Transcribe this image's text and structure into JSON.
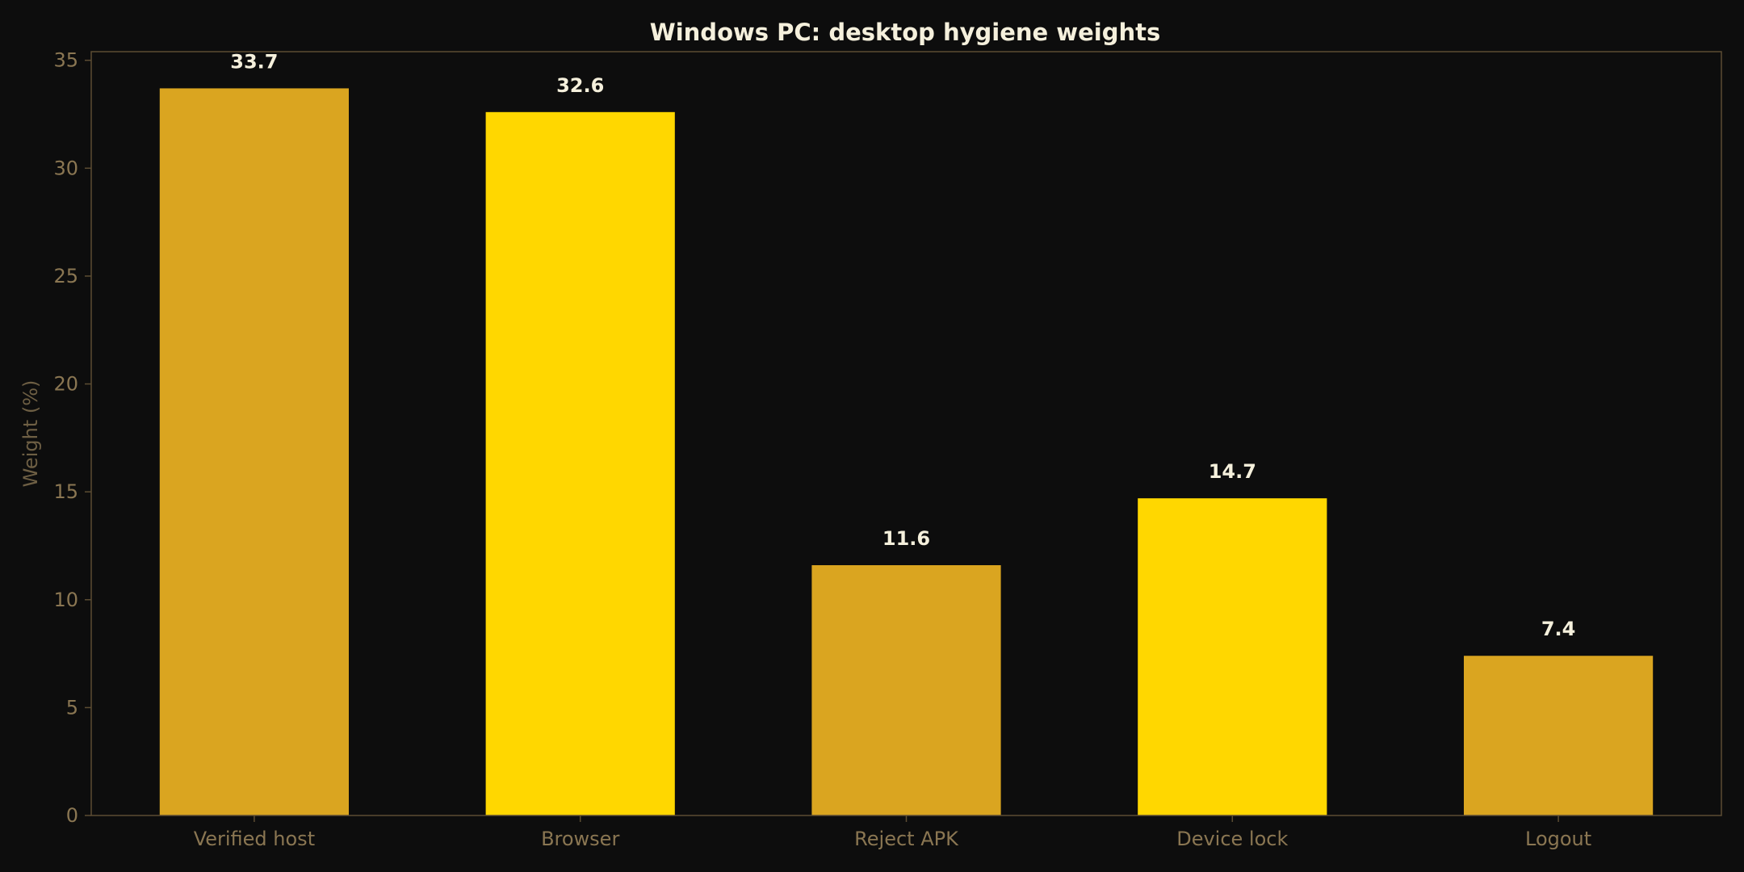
{
  "chart_data": {
    "type": "bar",
    "title": "Windows PC: desktop hygiene weights",
    "xlabel": "",
    "ylabel": "Weight (%)",
    "categories": [
      "Verified host",
      "Browser",
      "Reject APK",
      "Device lock",
      "Logout"
    ],
    "values": [
      33.7,
      32.6,
      11.6,
      14.7,
      7.4
    ],
    "value_labels": [
      "33.7",
      "32.6",
      "11.6",
      "14.7",
      "7.4"
    ],
    "ylim": [
      0,
      35.4
    ],
    "yticks": [
      0,
      5,
      10,
      15,
      20,
      25,
      30,
      35
    ],
    "ytick_labels": [
      "0",
      "5",
      "10",
      "15",
      "20",
      "25",
      "30",
      "35"
    ],
    "grid": false,
    "legend": "none",
    "colors": {
      "background": "#0d0d0d",
      "bar_primary": "#daa520",
      "bar_secondary": "#ffd700",
      "axes": "#5c4d33",
      "tick_text": "#8a7652",
      "title_text": "#f5f0dc"
    },
    "bar_colors": [
      "#daa520",
      "#ffd700",
      "#daa520",
      "#ffd700",
      "#daa520"
    ]
  }
}
